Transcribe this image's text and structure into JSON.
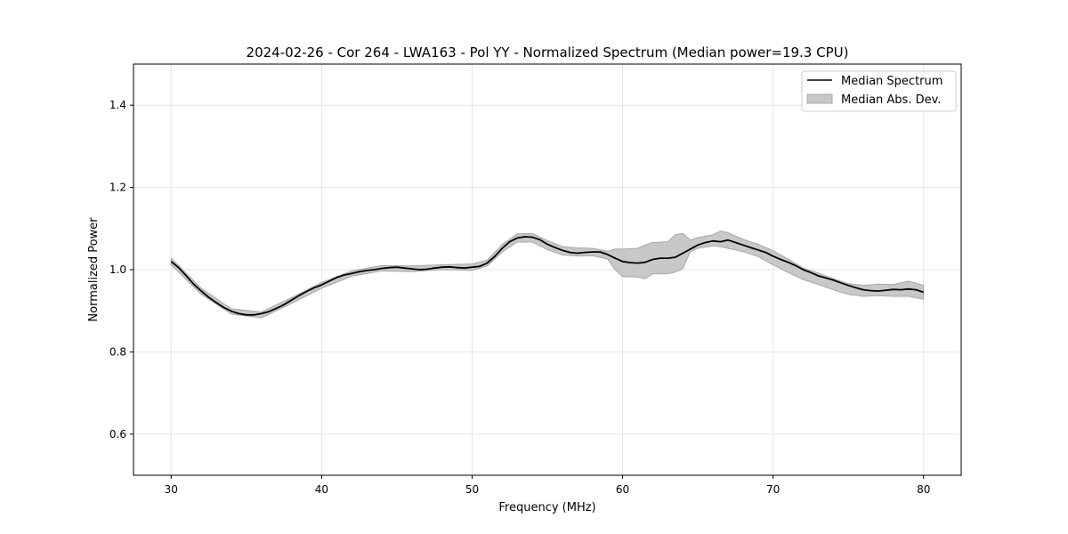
{
  "chart_data": {
    "type": "line",
    "title": "2024-02-26 - Cor 264 - LWA163 - Pol YY - Normalized Spectrum (Median power=19.3 CPU)",
    "xlabel": "Frequency (MHz)",
    "ylabel": "Normalized Power",
    "xlim": [
      27.5,
      82.5
    ],
    "ylim": [
      0.5,
      1.5
    ],
    "xticks": [
      30,
      40,
      50,
      60,
      70,
      80
    ],
    "yticks": [
      0.6,
      0.8,
      1.0,
      1.2,
      1.4
    ],
    "xtick_labels": [
      "30",
      "40",
      "50",
      "60",
      "70",
      "80"
    ],
    "ytick_labels": [
      "0.6",
      "0.8",
      "1.0",
      "1.2",
      "1.4"
    ],
    "grid": true,
    "legend": {
      "placement": "top-right",
      "entries": [
        "Median Spectrum",
        "Median Abs. Dev."
      ]
    },
    "colors": {
      "line": "#000000",
      "band": "#c8c8c8",
      "band_edge": "#a8a8a8",
      "grid": "#e6e6e6"
    },
    "series": [
      {
        "name": "Median Spectrum",
        "kind": "line",
        "x": [
          30,
          30.5,
          31,
          31.5,
          32,
          32.5,
          33,
          33.5,
          34,
          34.5,
          35,
          35.5,
          36,
          36.5,
          37,
          37.5,
          38,
          38.5,
          39,
          39.5,
          40,
          40.5,
          41,
          41.5,
          42,
          42.5,
          43,
          43.5,
          44,
          44.5,
          45,
          45.5,
          46,
          46.5,
          47,
          47.5,
          48,
          48.5,
          49,
          49.5,
          50,
          50.5,
          51,
          51.5,
          52,
          52.5,
          53,
          53.5,
          54,
          54.5,
          55,
          55.5,
          56,
          56.5,
          57,
          57.5,
          58,
          58.5,
          59,
          59.5,
          60,
          60.5,
          61,
          61.5,
          62,
          62.5,
          63,
          63.5,
          64,
          64.5,
          65,
          65.5,
          66,
          66.5,
          67,
          67.5,
          68,
          68.5,
          69,
          69.5,
          70,
          70.5,
          71,
          71.5,
          72,
          72.5,
          73,
          73.5,
          74,
          74.5,
          75,
          75.5,
          76,
          76.5,
          77,
          77.5,
          78,
          78.5,
          79,
          79.5,
          80
        ],
        "y": [
          1.02,
          1.005,
          0.985,
          0.965,
          0.948,
          0.933,
          0.92,
          0.908,
          0.899,
          0.893,
          0.89,
          0.89,
          0.893,
          0.898,
          0.906,
          0.915,
          0.926,
          0.937,
          0.947,
          0.956,
          0.963,
          0.972,
          0.981,
          0.987,
          0.991,
          0.995,
          0.998,
          1.0,
          1.003,
          1.005,
          1.006,
          1.004,
          1.002,
          1.0,
          1.001,
          1.004,
          1.006,
          1.007,
          1.005,
          1.004,
          1.006,
          1.008,
          1.016,
          1.032,
          1.052,
          1.068,
          1.077,
          1.08,
          1.079,
          1.073,
          1.062,
          1.054,
          1.047,
          1.042,
          1.04,
          1.042,
          1.043,
          1.043,
          1.037,
          1.028,
          1.02,
          1.017,
          1.016,
          1.018,
          1.025,
          1.028,
          1.028,
          1.03,
          1.04,
          1.05,
          1.06,
          1.066,
          1.07,
          1.068,
          1.072,
          1.066,
          1.06,
          1.054,
          1.048,
          1.042,
          1.033,
          1.025,
          1.018,
          1.01,
          1.0,
          0.993,
          0.985,
          0.98,
          0.975,
          0.968,
          0.962,
          0.956,
          0.951,
          0.949,
          0.948,
          0.95,
          0.952,
          0.951,
          0.953,
          0.951,
          0.945
        ]
      },
      {
        "name": "Median Abs. Dev.",
        "kind": "band",
        "x": [
          30,
          32,
          34,
          36,
          38,
          40,
          42,
          44,
          46,
          48,
          50,
          51,
          52,
          53,
          54,
          55,
          56,
          57,
          58,
          59,
          59.5,
          60,
          61,
          61.5,
          62,
          63,
          63.5,
          64,
          64.5,
          65,
          66,
          66.5,
          67,
          68,
          69,
          70,
          71,
          72,
          73,
          74,
          75,
          76,
          77,
          78,
          79,
          80
        ],
        "lower": [
          1.012,
          0.94,
          0.892,
          0.883,
          0.918,
          0.955,
          0.984,
          0.997,
          0.995,
          1.0,
          0.998,
          1.009,
          1.043,
          1.067,
          1.067,
          1.049,
          1.036,
          1.033,
          1.034,
          1.026,
          1.0,
          0.983,
          0.982,
          0.978,
          0.99,
          0.99,
          0.994,
          1.003,
          1.043,
          1.052,
          1.058,
          1.056,
          1.052,
          1.044,
          1.032,
          1.012,
          0.993,
          0.976,
          0.964,
          0.951,
          0.94,
          0.935,
          0.937,
          0.935,
          0.935,
          0.928
        ],
        "upper": [
          1.028,
          0.955,
          0.905,
          0.897,
          0.932,
          0.969,
          0.997,
          1.01,
          1.009,
          1.012,
          1.014,
          1.023,
          1.061,
          1.087,
          1.088,
          1.071,
          1.056,
          1.053,
          1.052,
          1.045,
          1.05,
          1.05,
          1.052,
          1.06,
          1.066,
          1.068,
          1.085,
          1.088,
          1.072,
          1.078,
          1.085,
          1.094,
          1.09,
          1.074,
          1.062,
          1.046,
          1.026,
          1.004,
          0.992,
          0.978,
          0.966,
          0.962,
          0.965,
          0.964,
          0.972,
          0.962
        ]
      }
    ]
  }
}
